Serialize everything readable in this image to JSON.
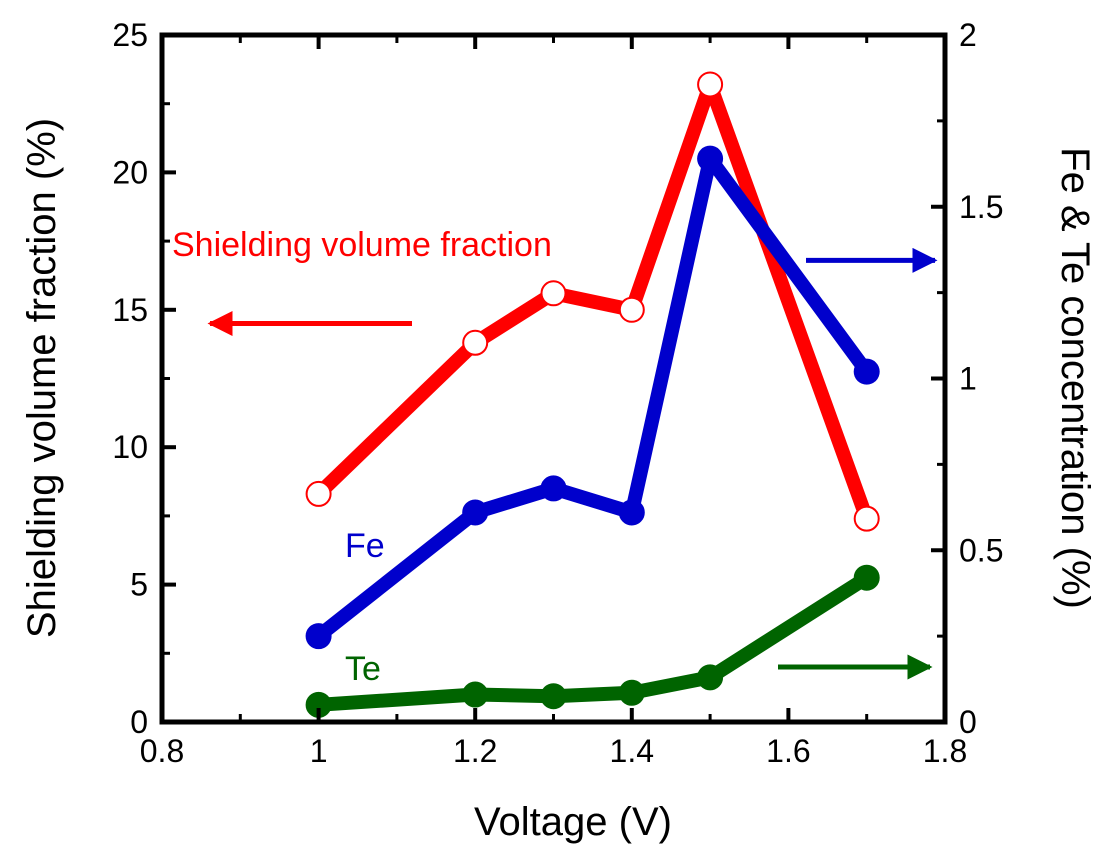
{
  "chart_data": {
    "type": "line",
    "title": "",
    "xlabel": "Voltage (V)",
    "ylabel_left": "Shielding volume fraction (%)",
    "ylabel_right": "Fe & Te concentration (%)",
    "xlim": [
      0.8,
      1.8
    ],
    "ylim_left": [
      0,
      25
    ],
    "ylim_right": [
      0,
      2
    ],
    "x_ticks": [
      "0.8",
      "1",
      "1.2",
      "1.4",
      "1.6",
      "1.8"
    ],
    "y_ticks_left": [
      "0",
      "5",
      "10",
      "15",
      "20",
      "25"
    ],
    "y_ticks_right": [
      "0",
      "0.5",
      "1",
      "1.5",
      "2"
    ],
    "grid": false,
    "series": [
      {
        "name": "Shielding volume fraction",
        "axis": "left",
        "color": "#ff0000",
        "marker": "open-circle",
        "x": [
          1.0,
          1.2,
          1.3,
          1.4,
          1.5,
          1.7
        ],
        "y": [
          8.3,
          13.8,
          15.6,
          15.0,
          23.2,
          7.4
        ]
      },
      {
        "name": "Fe",
        "axis": "right",
        "color": "#0000cc",
        "marker": "filled-circle",
        "x": [
          1.0,
          1.2,
          1.3,
          1.4,
          1.5,
          1.7
        ],
        "y": [
          0.25,
          0.61,
          0.68,
          0.61,
          1.64,
          1.02
        ]
      },
      {
        "name": "Te",
        "axis": "right",
        "color": "#006400",
        "marker": "filled-circle",
        "x": [
          1.0,
          1.2,
          1.3,
          1.4,
          1.5,
          1.7
        ],
        "y": [
          0.05,
          0.08,
          0.075,
          0.085,
          0.13,
          0.42
        ]
      }
    ],
    "annotations": [
      {
        "text": "Shielding volume fraction",
        "color": "#ff0000",
        "arrow": "left",
        "arrow_y_left": 14.5
      },
      {
        "text": "Fe",
        "color": "#0000cc",
        "arrow": "right",
        "arrow_y_left": 16.8
      },
      {
        "text": "Te",
        "color": "#006400",
        "arrow": "right",
        "arrow_y_left": 2.0
      }
    ]
  }
}
